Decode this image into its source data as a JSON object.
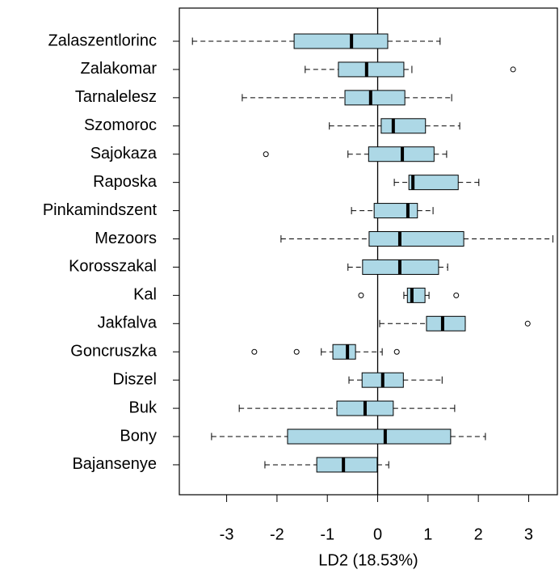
{
  "chart_data": {
    "type": "boxplot",
    "orientation": "horizontal",
    "xlabel": "LD2 (18.53%)",
    "categories": [
      "Zalaszentlorinc",
      "Zalakomar",
      "Tarnalelesz",
      "Szomoroc",
      "Sajokaza",
      "Raposka",
      "Pinkamindszent",
      "Mezoors",
      "Korosszakal",
      "Kal",
      "Jakfalva",
      "Goncruszka",
      "Diszel",
      "Buk",
      "Bony",
      "Bajansenye"
    ],
    "boxes": [
      {
        "min": -3.68,
        "q1": -1.66,
        "median": -0.52,
        "q3": 0.2,
        "max": 1.24,
        "outliers": []
      },
      {
        "min": -1.44,
        "q1": -0.78,
        "median": -0.22,
        "q3": 0.52,
        "max": 0.68,
        "outliers": [
          2.69
        ]
      },
      {
        "min": -2.69,
        "q1": -0.65,
        "median": -0.14,
        "q3": 0.54,
        "max": 1.47,
        "outliers": []
      },
      {
        "min": -0.96,
        "q1": 0.07,
        "median": 0.31,
        "q3": 0.95,
        "max": 1.63,
        "outliers": []
      },
      {
        "min": -0.59,
        "q1": -0.18,
        "median": 0.49,
        "q3": 1.12,
        "max": 1.37,
        "outliers": [
          -2.22
        ]
      },
      {
        "min": 0.33,
        "q1": 0.62,
        "median": 0.7,
        "q3": 1.6,
        "max": 2.01,
        "outliers": []
      },
      {
        "min": -0.52,
        "q1": -0.07,
        "median": 0.6,
        "q3": 0.79,
        "max": 1.1,
        "outliers": []
      },
      {
        "min": -1.92,
        "q1": -0.17,
        "median": 0.44,
        "q3": 1.71,
        "max": 3.48,
        "outliers": []
      },
      {
        "min": -0.59,
        "q1": -0.3,
        "median": 0.44,
        "q3": 1.21,
        "max": 1.39,
        "outliers": []
      },
      {
        "min": 0.52,
        "q1": 0.59,
        "median": 0.68,
        "q3": 0.94,
        "max": 1.02,
        "outliers": [
          -0.33,
          1.56
        ]
      },
      {
        "min": 0.04,
        "q1": 0.97,
        "median": 1.29,
        "q3": 1.74,
        "max": 1.74,
        "outliers": [
          2.98
        ]
      },
      {
        "min": -1.12,
        "q1": -0.89,
        "median": -0.6,
        "q3": -0.44,
        "max": 0.09,
        "outliers": [
          -2.45,
          -1.61,
          0.38
        ]
      },
      {
        "min": -0.57,
        "q1": -0.31,
        "median": 0.1,
        "q3": 0.51,
        "max": 1.28,
        "outliers": []
      },
      {
        "min": -2.75,
        "q1": -0.81,
        "median": -0.25,
        "q3": 0.31,
        "max": 1.53,
        "outliers": []
      },
      {
        "min": -3.3,
        "q1": -1.79,
        "median": 0.15,
        "q3": 1.45,
        "max": 2.14,
        "outliers": []
      },
      {
        "min": -2.24,
        "q1": -1.21,
        "median": -0.68,
        "q3": -0.01,
        "max": 0.22,
        "outliers": []
      }
    ],
    "color": "#add8e6",
    "xlim": [
      -3.94,
      3.57
    ],
    "xticks": [
      -3,
      -2,
      -1,
      0,
      1,
      2,
      3
    ],
    "vline": 0
  }
}
